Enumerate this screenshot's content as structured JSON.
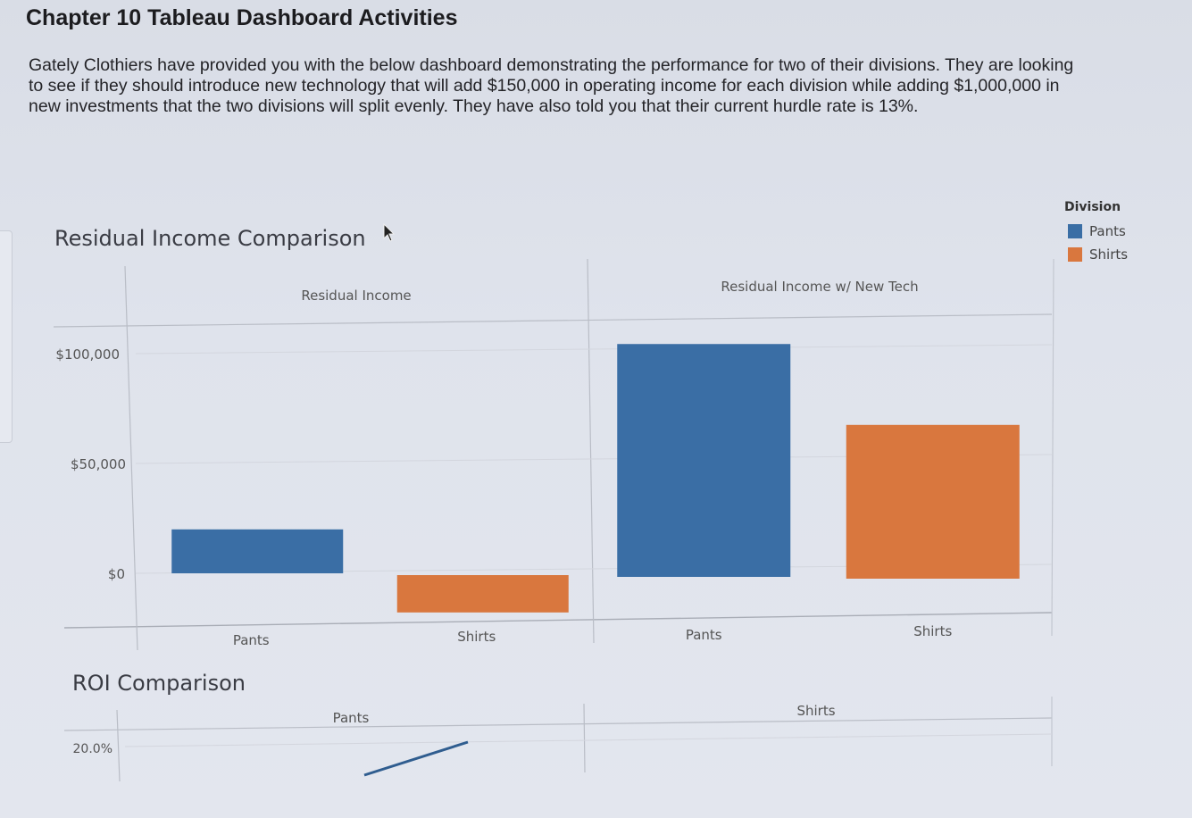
{
  "page": {
    "title": "Chapter 10 Tableau Dashboard Activities",
    "intro": "Gately Clothiers have provided you with the below dashboard demonstrating the performance for two of their divisions. They are looking to see if they should introduce new technology that will add $150,000 in operating income for each division while adding $1,000,000 in new investments that the two divisions will split evenly. They have also told you that their current hurdle rate is 13%."
  },
  "colors": {
    "pants": "#3a6ea5",
    "shirts": "#d9773e"
  },
  "legend": {
    "title": "Division",
    "items": [
      {
        "label": "Pants",
        "color": "#3a6ea5"
      },
      {
        "label": "Shirts",
        "color": "#d9773e"
      }
    ]
  },
  "chart_data": [
    {
      "type": "bar",
      "title": "Residual Income Comparison",
      "ylim": [
        -35000,
        109000
      ],
      "y_ticks": [
        {
          "value": 100000,
          "label": "$100,000"
        },
        {
          "value": 50000,
          "label": "$50,000"
        },
        {
          "value": 0,
          "label": "$0"
        }
      ],
      "panels": [
        {
          "header": "Residual Income",
          "categories": [
            "Pants",
            "Shirts"
          ],
          "values": [
            20000,
            -17000
          ]
        },
        {
          "header": "Residual Income  w/ New Tech",
          "categories": [
            "Pants",
            "Shirts"
          ],
          "values": [
            106000,
            70000
          ]
        }
      ],
      "legend_position": "top-right",
      "grid": true
    },
    {
      "type": "line",
      "title": "ROI Comparison",
      "y_ticks": [
        {
          "value": 20.0,
          "label": "20.0%"
        }
      ],
      "panels": [
        {
          "header": "Pants"
        },
        {
          "header": "Shirts"
        }
      ]
    }
  ]
}
